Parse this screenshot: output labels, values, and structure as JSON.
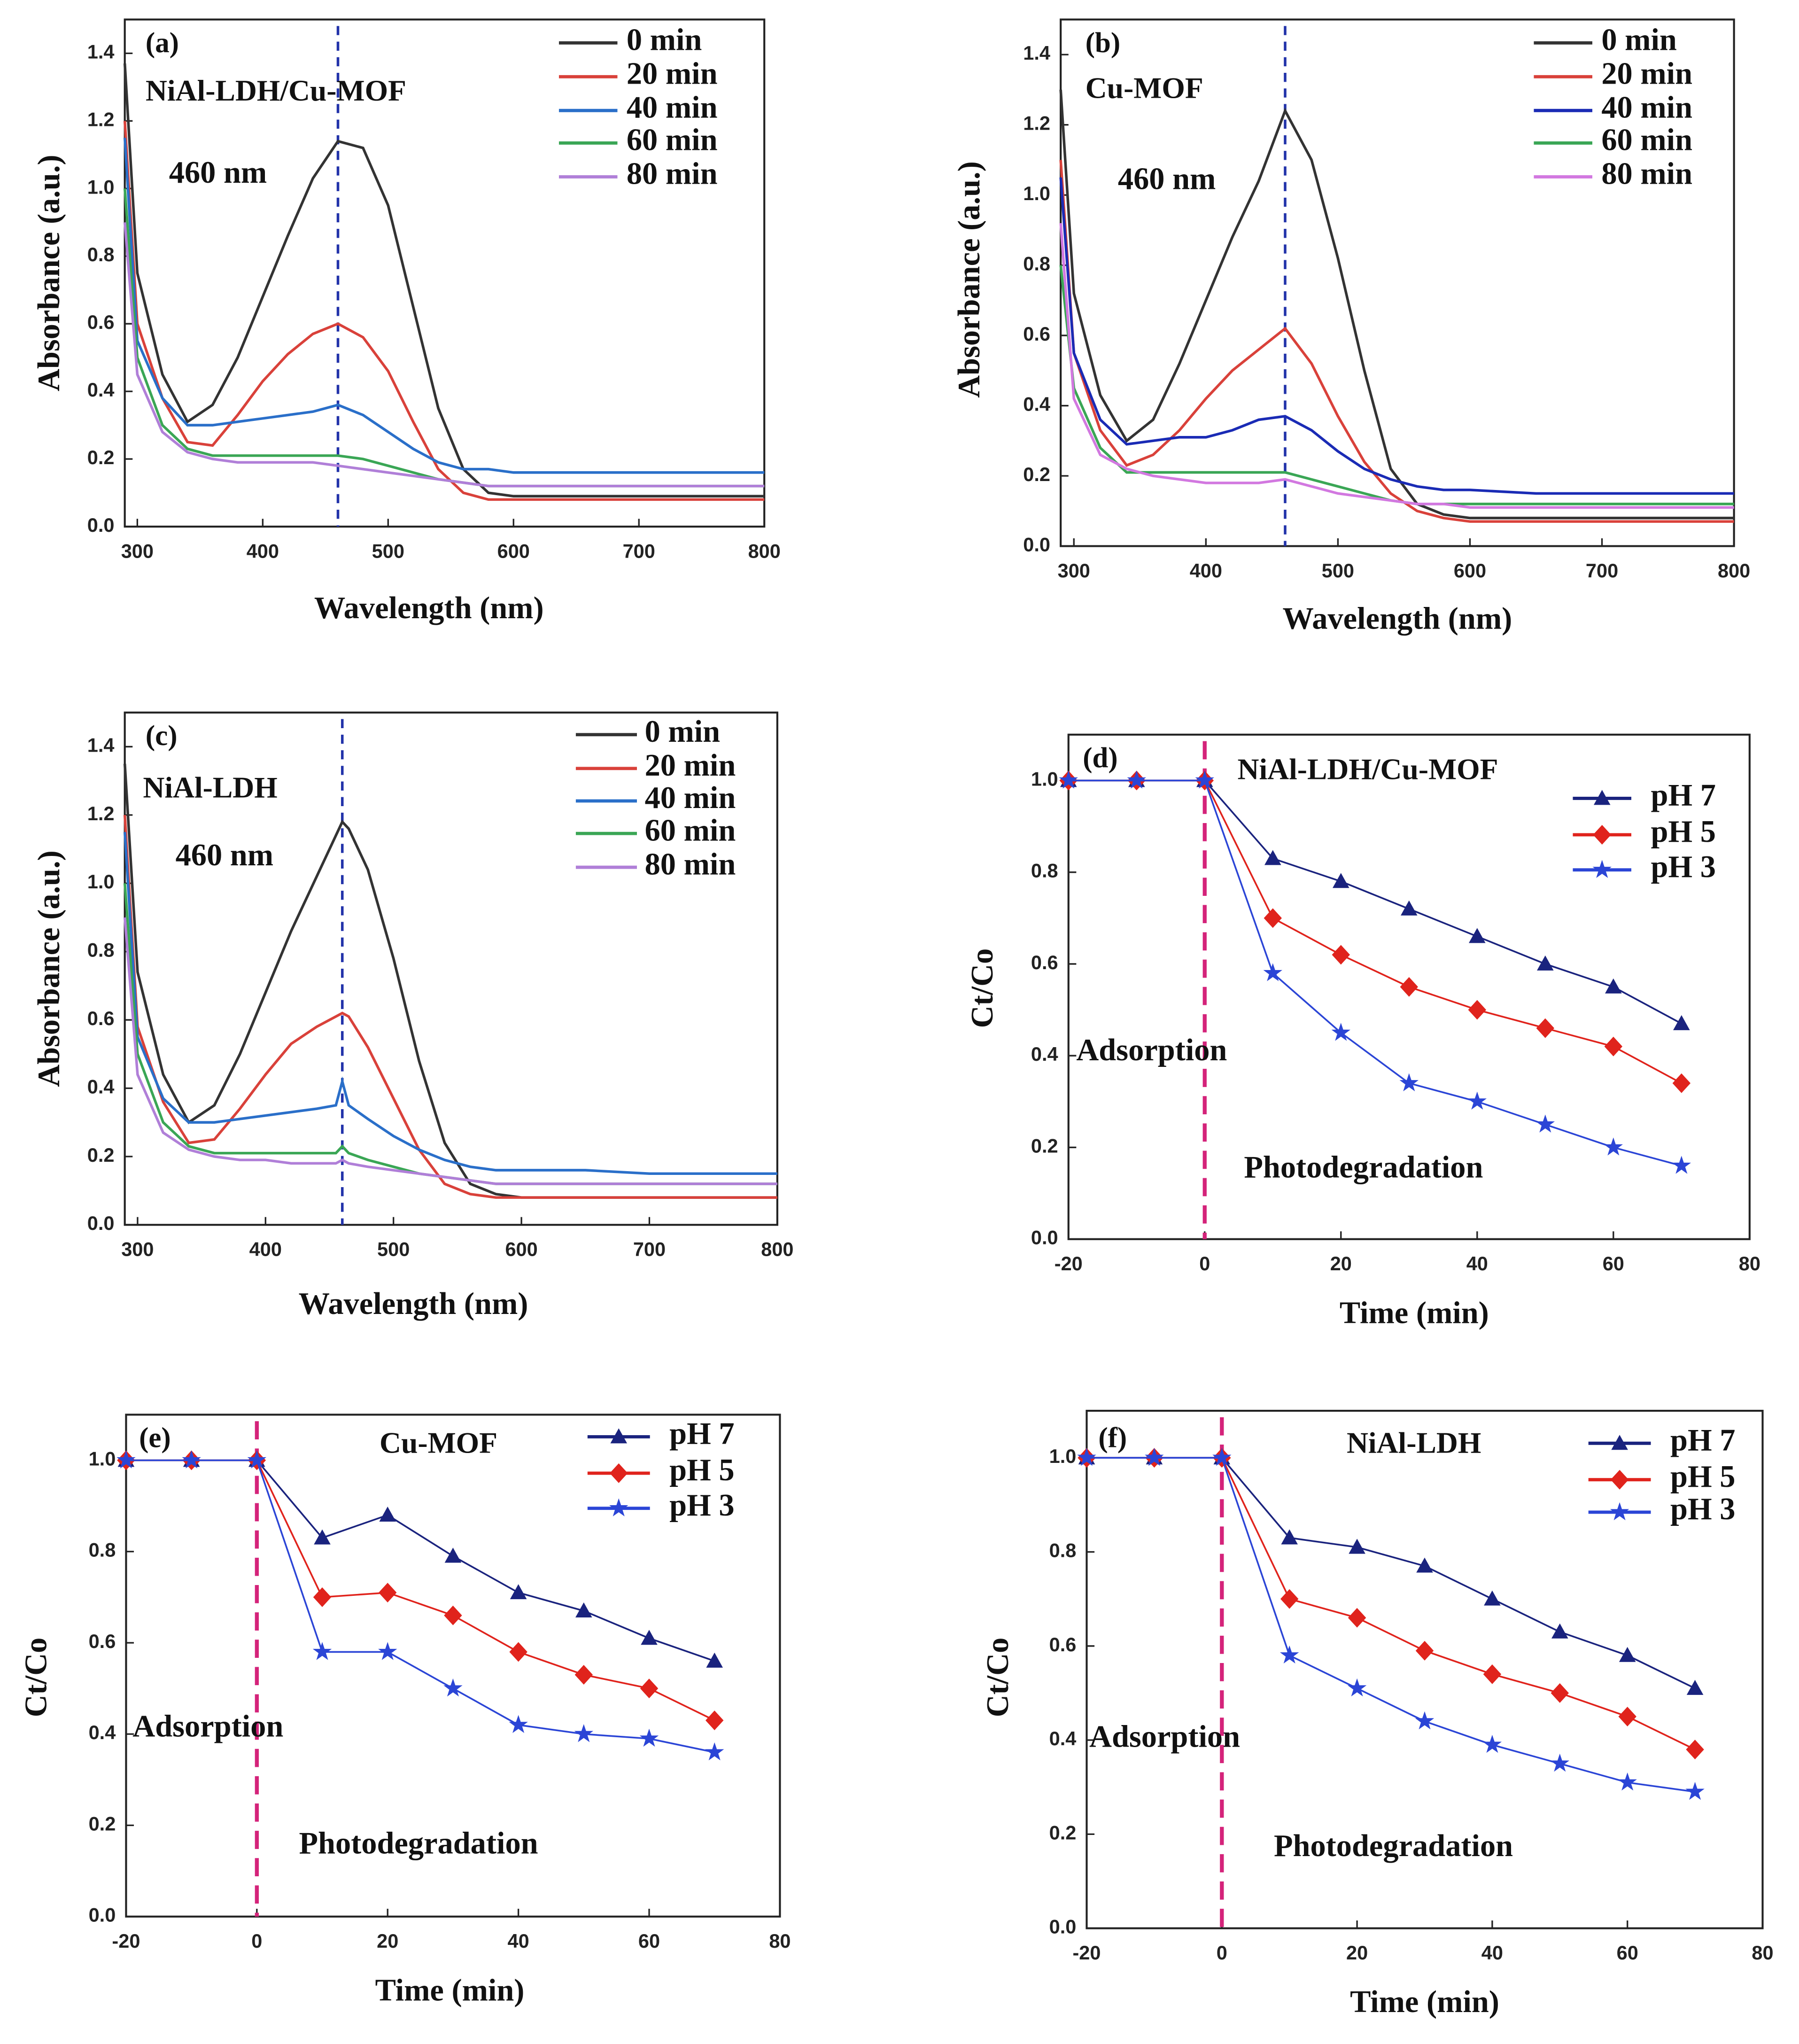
{
  "chart_data": [
    {
      "type": "line",
      "panel_label": "(a)",
      "title": "NiAl-LDH/Cu-MOF",
      "xlabel": "Wavelength (nm)",
      "ylabel": "Absorbance (a.u.)",
      "x": [
        290,
        300,
        320,
        340,
        360,
        380,
        400,
        420,
        440,
        460,
        480,
        500,
        520,
        540,
        560,
        580,
        600,
        650,
        700,
        750,
        800
      ],
      "series": [
        {
          "name": "0 min",
          "color": "#333333",
          "values": [
            1.37,
            0.75,
            0.45,
            0.31,
            0.36,
            0.5,
            0.68,
            0.86,
            1.03,
            1.14,
            1.12,
            0.95,
            0.65,
            0.35,
            0.17,
            0.1,
            0.09,
            0.09,
            0.09,
            0.09,
            0.09
          ]
        },
        {
          "name": "20 min",
          "color": "#d9413a",
          "values": [
            1.2,
            0.6,
            0.38,
            0.25,
            0.24,
            0.33,
            0.43,
            0.51,
            0.57,
            0.6,
            0.56,
            0.46,
            0.31,
            0.17,
            0.1,
            0.08,
            0.08,
            0.08,
            0.08,
            0.08,
            0.08
          ]
        },
        {
          "name": "40 min",
          "color": "#2a6fc9",
          "values": [
            1.15,
            0.55,
            0.38,
            0.3,
            0.3,
            0.31,
            0.32,
            0.33,
            0.34,
            0.36,
            0.33,
            0.28,
            0.23,
            0.19,
            0.17,
            0.17,
            0.16,
            0.16,
            0.16,
            0.16,
            0.16
          ]
        },
        {
          "name": "60 min",
          "color": "#3aa655",
          "values": [
            1.0,
            0.5,
            0.3,
            0.23,
            0.21,
            0.21,
            0.21,
            0.21,
            0.21,
            0.21,
            0.2,
            0.18,
            0.16,
            0.14,
            0.13,
            0.12,
            0.12,
            0.12,
            0.12,
            0.12,
            0.12
          ]
        },
        {
          "name": "80 min",
          "color": "#b07fd8",
          "values": [
            0.9,
            0.45,
            0.28,
            0.22,
            0.2,
            0.19,
            0.19,
            0.19,
            0.19,
            0.18,
            0.17,
            0.16,
            0.15,
            0.14,
            0.13,
            0.12,
            0.12,
            0.12,
            0.12,
            0.12,
            0.12
          ]
        }
      ],
      "xlim": [
        290,
        800
      ],
      "ylim": [
        0,
        1.5
      ],
      "xticks": [
        300,
        400,
        500,
        600,
        700,
        800
      ],
      "yticks": [
        {
          "value": 0,
          "label": "0.0"
        },
        0.2,
        0.4,
        0.6,
        0.8,
        {
          "value": 1,
          "label": "1.0"
        },
        1.2,
        1.4
      ],
      "reference_line": {
        "x": 460,
        "color": "#2233aa"
      },
      "annotations": [
        {
          "text": "460 nm"
        }
      ]
    },
    {
      "type": "line",
      "panel_label": "(b)",
      "title": "Cu-MOF",
      "xlabel": "Wavelength (nm)",
      "ylabel": "Absorbance (a.u.)",
      "x": [
        290,
        300,
        320,
        340,
        360,
        380,
        400,
        420,
        440,
        460,
        480,
        500,
        520,
        540,
        560,
        580,
        600,
        650,
        700,
        750,
        800
      ],
      "series": [
        {
          "name": "0 min",
          "color": "#333333",
          "values": [
            1.3,
            0.72,
            0.43,
            0.3,
            0.36,
            0.52,
            0.7,
            0.88,
            1.04,
            1.24,
            1.1,
            0.82,
            0.5,
            0.22,
            0.12,
            0.09,
            0.08,
            0.08,
            0.08,
            0.08,
            0.08
          ]
        },
        {
          "name": "20 min",
          "color": "#d9413a",
          "values": [
            1.1,
            0.55,
            0.33,
            0.23,
            0.26,
            0.33,
            0.42,
            0.5,
            0.56,
            0.62,
            0.52,
            0.37,
            0.24,
            0.15,
            0.1,
            0.08,
            0.07,
            0.07,
            0.07,
            0.07,
            0.07
          ]
        },
        {
          "name": "40 min",
          "color": "#1a2bb5",
          "values": [
            1.05,
            0.55,
            0.36,
            0.29,
            0.3,
            0.31,
            0.31,
            0.33,
            0.36,
            0.37,
            0.33,
            0.27,
            0.22,
            0.19,
            0.17,
            0.16,
            0.16,
            0.15,
            0.15,
            0.15,
            0.15
          ]
        },
        {
          "name": "60 min",
          "color": "#3aa655",
          "values": [
            0.8,
            0.45,
            0.28,
            0.21,
            0.21,
            0.21,
            0.21,
            0.21,
            0.21,
            0.21,
            0.19,
            0.17,
            0.15,
            0.13,
            0.12,
            0.12,
            0.12,
            0.12,
            0.12,
            0.12,
            0.12
          ]
        },
        {
          "name": "80 min",
          "color": "#d278e0",
          "values": [
            0.92,
            0.42,
            0.26,
            0.22,
            0.2,
            0.19,
            0.18,
            0.18,
            0.18,
            0.19,
            0.17,
            0.15,
            0.14,
            0.13,
            0.12,
            0.12,
            0.11,
            0.11,
            0.11,
            0.11,
            0.11
          ]
        }
      ],
      "xlim": [
        290,
        800
      ],
      "ylim": [
        0,
        1.5
      ],
      "xticks": [
        300,
        400,
        500,
        600,
        700,
        800
      ],
      "yticks": [
        {
          "value": 0,
          "label": "0.0"
        },
        0.2,
        0.4,
        0.6,
        0.8,
        {
          "value": 1,
          "label": "1.0"
        },
        1.2,
        1.4
      ],
      "reference_line": {
        "x": 460,
        "color": "#2233aa"
      },
      "annotations": [
        {
          "text": "460 nm"
        }
      ]
    },
    {
      "type": "line",
      "panel_label": "(c)",
      "title": "NiAl-LDH",
      "xlabel": "Wavelength (nm)",
      "ylabel": "Absorbance (a.u.)",
      "x": [
        290,
        300,
        320,
        340,
        360,
        380,
        400,
        420,
        440,
        455,
        460,
        465,
        480,
        500,
        520,
        540,
        560,
        580,
        600,
        650,
        700,
        750,
        800
      ],
      "series": [
        {
          "name": "0 min",
          "color": "#333333",
          "values": [
            1.35,
            0.74,
            0.44,
            0.3,
            0.35,
            0.5,
            0.68,
            0.86,
            1.02,
            1.14,
            1.18,
            1.16,
            1.04,
            0.78,
            0.48,
            0.24,
            0.12,
            0.09,
            0.08,
            0.08,
            0.08,
            0.08,
            0.08
          ]
        },
        {
          "name": "20 min",
          "color": "#d9413a",
          "values": [
            1.2,
            0.58,
            0.36,
            0.24,
            0.25,
            0.34,
            0.44,
            0.53,
            0.58,
            0.61,
            0.62,
            0.61,
            0.52,
            0.37,
            0.22,
            0.12,
            0.09,
            0.08,
            0.08,
            0.08,
            0.08,
            0.08,
            0.08
          ]
        },
        {
          "name": "40 min",
          "color": "#2a6fc9",
          "values": [
            1.15,
            0.55,
            0.37,
            0.3,
            0.3,
            0.31,
            0.32,
            0.33,
            0.34,
            0.35,
            0.42,
            0.35,
            0.31,
            0.26,
            0.22,
            0.19,
            0.17,
            0.16,
            0.16,
            0.16,
            0.15,
            0.15,
            0.15
          ]
        },
        {
          "name": "60 min",
          "color": "#3aa655",
          "values": [
            1.0,
            0.5,
            0.3,
            0.23,
            0.21,
            0.21,
            0.21,
            0.21,
            0.21,
            0.21,
            0.23,
            0.21,
            0.19,
            0.17,
            0.15,
            0.14,
            0.13,
            0.12,
            0.12,
            0.12,
            0.12,
            0.12,
            0.12
          ]
        },
        {
          "name": "80 min",
          "color": "#b07fd8",
          "values": [
            0.9,
            0.44,
            0.27,
            0.22,
            0.2,
            0.19,
            0.19,
            0.18,
            0.18,
            0.18,
            0.19,
            0.18,
            0.17,
            0.16,
            0.15,
            0.14,
            0.13,
            0.12,
            0.12,
            0.12,
            0.12,
            0.12,
            0.12
          ]
        }
      ],
      "xlim": [
        290,
        800
      ],
      "ylim": [
        0,
        1.5
      ],
      "xticks": [
        300,
        400,
        500,
        600,
        700,
        800
      ],
      "yticks": [
        {
          "value": 0,
          "label": "0.0"
        },
        0.2,
        0.4,
        0.6,
        0.8,
        {
          "value": 1,
          "label": "1.0"
        },
        1.2,
        1.4
      ],
      "reference_line": {
        "x": 460,
        "color": "#2233aa"
      },
      "annotations": [
        {
          "text": "460 nm"
        }
      ]
    },
    {
      "type": "line",
      "panel_label": "(d)",
      "title": "NiAl-LDH/Cu-MOF",
      "xlabel": "Time (min)",
      "ylabel": "Ct/Co",
      "x": [
        -20,
        -10,
        0,
        10,
        20,
        30,
        40,
        50,
        60,
        70
      ],
      "series": [
        {
          "name": "pH 7",
          "color": "#1a237e",
          "marker": "triangle",
          "values": [
            1,
            1,
            1,
            0.83,
            0.78,
            0.72,
            0.66,
            0.6,
            0.55,
            0.47
          ]
        },
        {
          "name": "pH 5",
          "color": "#e0231c",
          "marker": "diamond",
          "values": [
            1,
            1,
            1,
            0.7,
            0.62,
            0.55,
            0.5,
            0.46,
            0.42,
            0.34
          ]
        },
        {
          "name": "pH 3",
          "color": "#2b45d6",
          "marker": "star",
          "values": [
            1,
            1,
            1,
            0.58,
            0.45,
            0.34,
            0.3,
            0.25,
            0.2,
            0.16
          ]
        }
      ],
      "xlim": [
        -20,
        80
      ],
      "ylim": [
        0,
        1.1
      ],
      "xticks": [
        -20,
        0,
        20,
        40,
        60,
        80
      ],
      "yticks": [
        {
          "value": 0,
          "label": "0.0"
        },
        0.2,
        0.4,
        0.6,
        0.8,
        {
          "value": 1,
          "label": "1.0"
        }
      ],
      "reference_line": {
        "x": 0,
        "color": "#d4237a"
      },
      "annotations": [
        {
          "text": "Adsorption"
        },
        {
          "text": "Photodegradation"
        }
      ]
    },
    {
      "type": "line",
      "panel_label": "(e)",
      "title": "Cu-MOF",
      "xlabel": "Time (min)",
      "ylabel": "Ct/Co",
      "x": [
        -20,
        -10,
        0,
        10,
        20,
        30,
        40,
        50,
        60,
        70
      ],
      "series": [
        {
          "name": "pH 7",
          "color": "#1a237e",
          "marker": "triangle",
          "values": [
            1,
            1,
            1,
            0.83,
            0.88,
            0.79,
            0.71,
            0.67,
            0.61,
            0.56
          ]
        },
        {
          "name": "pH 5",
          "color": "#e0231c",
          "marker": "diamond",
          "values": [
            1,
            1,
            1,
            0.7,
            0.71,
            0.66,
            0.58,
            0.53,
            0.5,
            0.43
          ]
        },
        {
          "name": "pH 3",
          "color": "#2b45d6",
          "marker": "star",
          "values": [
            1,
            1,
            1,
            0.58,
            0.58,
            0.5,
            0.42,
            0.4,
            0.39,
            0.36
          ]
        }
      ],
      "xlim": [
        -20,
        80
      ],
      "ylim": [
        0,
        1.1
      ],
      "xticks": [
        -20,
        0,
        20,
        40,
        60,
        80
      ],
      "yticks": [
        {
          "value": 0,
          "label": "0.0"
        },
        0.2,
        0.4,
        0.6,
        0.8,
        {
          "value": 1,
          "label": "1.0"
        }
      ],
      "reference_line": {
        "x": 0,
        "color": "#d4237a"
      },
      "annotations": [
        {
          "text": "Adsorption"
        },
        {
          "text": "Photodegradation"
        }
      ]
    },
    {
      "type": "line",
      "panel_label": "(f)",
      "title": "NiAl-LDH",
      "xlabel": "Time (min)",
      "ylabel": "Ct/Co",
      "x": [
        -20,
        -10,
        0,
        10,
        20,
        30,
        40,
        50,
        60,
        70
      ],
      "series": [
        {
          "name": "pH 7",
          "color": "#1a237e",
          "marker": "triangle",
          "values": [
            1,
            1,
            1,
            0.83,
            0.81,
            0.77,
            0.7,
            0.63,
            0.58,
            0.51
          ]
        },
        {
          "name": "pH 5",
          "color": "#e0231c",
          "marker": "diamond",
          "values": [
            1,
            1,
            1,
            0.7,
            0.66,
            0.59,
            0.54,
            0.5,
            0.45,
            0.38
          ]
        },
        {
          "name": "pH 3",
          "color": "#2b45d6",
          "marker": "star",
          "values": [
            1,
            1,
            1,
            0.58,
            0.51,
            0.44,
            0.39,
            0.35,
            0.31,
            0.29
          ]
        }
      ],
      "xlim": [
        -20,
        80
      ],
      "ylim": [
        0,
        1.1
      ],
      "xticks": [
        -20,
        0,
        20,
        40,
        60,
        80
      ],
      "yticks": [
        {
          "value": 0,
          "label": "0.0"
        },
        0.2,
        0.4,
        0.6,
        0.8,
        {
          "value": 1,
          "label": "1.0"
        }
      ],
      "reference_line": {
        "x": 0,
        "color": "#d4237a"
      },
      "annotations": [
        {
          "text": "Adsorption"
        },
        {
          "text": "Photodegradation"
        }
      ]
    }
  ]
}
